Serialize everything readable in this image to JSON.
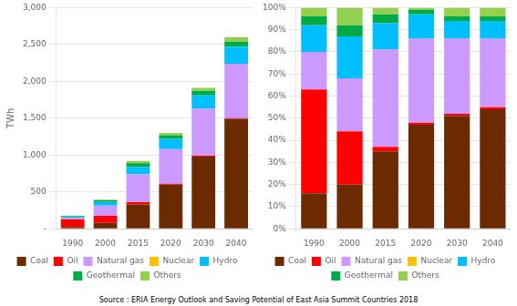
{
  "chart_data": [
    {
      "type": "bar",
      "stacked": true,
      "categories": [
        "1990",
        "2000",
        "2015",
        "2020",
        "2030",
        "2040"
      ],
      "series": [
        {
          "name": "Coal",
          "color": "#6B2A00",
          "values": [
            25,
            80,
            330,
            600,
            980,
            1490
          ]
        },
        {
          "name": "Oil",
          "color": "#FF0000",
          "values": [
            105,
            95,
            30,
            10,
            10,
            10
          ]
        },
        {
          "name": "Natural gas",
          "color": "#CC99FF",
          "values": [
            15,
            140,
            380,
            470,
            640,
            740
          ]
        },
        {
          "name": "Nuclear",
          "color": "#FFC000",
          "values": [
            0,
            0,
            0,
            0,
            0,
            0
          ]
        },
        {
          "name": "Hydro",
          "color": "#00BFFF",
          "values": [
            20,
            50,
            100,
            140,
            180,
            230
          ]
        },
        {
          "name": "Geothermal",
          "color": "#00AA44",
          "values": [
            10,
            20,
            50,
            50,
            60,
            70
          ]
        },
        {
          "name": "Others",
          "color": "#92D050",
          "values": [
            5,
            10,
            30,
            30,
            40,
            60
          ]
        }
      ],
      "ylabel": "TWh",
      "ylim": [
        0,
        3000
      ],
      "yticks": [
        {
          "value": 0,
          "label": "-"
        },
        500,
        {
          "value": 1000,
          "label": "1,000"
        },
        {
          "value": 1500,
          "label": "1,500"
        },
        {
          "value": 2000,
          "label": "2,000"
        },
        {
          "value": 2500,
          "label": "2,500"
        },
        {
          "value": 3000,
          "label": "3,000"
        }
      ],
      "grid": true,
      "legend": "bottom",
      "annotations": [
        "Source : ERIA Energy Outlook and Saving Potential of East Asia Summit Countries 2018"
      ]
    },
    {
      "type": "bar",
      "stacked": true,
      "categories": [
        "1990",
        "2000",
        "2015",
        "2020",
        "2030",
        "2040"
      ],
      "series": [
        {
          "name": "Coal",
          "color": "#6B2A00",
          "values": [
            16,
            20,
            35,
            47,
            51,
            54
          ]
        },
        {
          "name": "Oil",
          "color": "#FF0000",
          "values": [
            47,
            24,
            2,
            1,
            1,
            1
          ]
        },
        {
          "name": "Natural gas",
          "color": "#CC99FF",
          "values": [
            17,
            24,
            44,
            38,
            34,
            31
          ]
        },
        {
          "name": "Nuclear",
          "color": "#FFC000",
          "values": [
            0,
            0,
            0,
            0,
            0,
            0
          ]
        },
        {
          "name": "Hydro",
          "color": "#00BFFF",
          "values": [
            12,
            19,
            12,
            11,
            8,
            8
          ]
        },
        {
          "name": "Geothermal",
          "color": "#00AA44",
          "values": [
            4,
            5,
            4,
            2,
            2,
            2
          ]
        },
        {
          "name": "Others",
          "color": "#92D050",
          "values": [
            4,
            8,
            3,
            1,
            4,
            4
          ]
        }
      ],
      "ylim": [
        0,
        100
      ],
      "yticks": [
        {
          "value": 0,
          "label": "0%"
        },
        {
          "value": 10,
          "label": "10%"
        },
        {
          "value": 20,
          "label": "20%"
        },
        {
          "value": 30,
          "label": "30%"
        },
        {
          "value": 40,
          "label": "40%"
        },
        {
          "value": 50,
          "label": "50%"
        },
        {
          "value": 60,
          "label": "60%"
        },
        {
          "value": 70,
          "label": "70%"
        },
        {
          "value": 80,
          "label": "80%"
        },
        {
          "value": 90,
          "label": "90%"
        },
        {
          "value": 100,
          "label": "100%"
        }
      ],
      "grid": true,
      "legend": "bottom"
    }
  ]
}
